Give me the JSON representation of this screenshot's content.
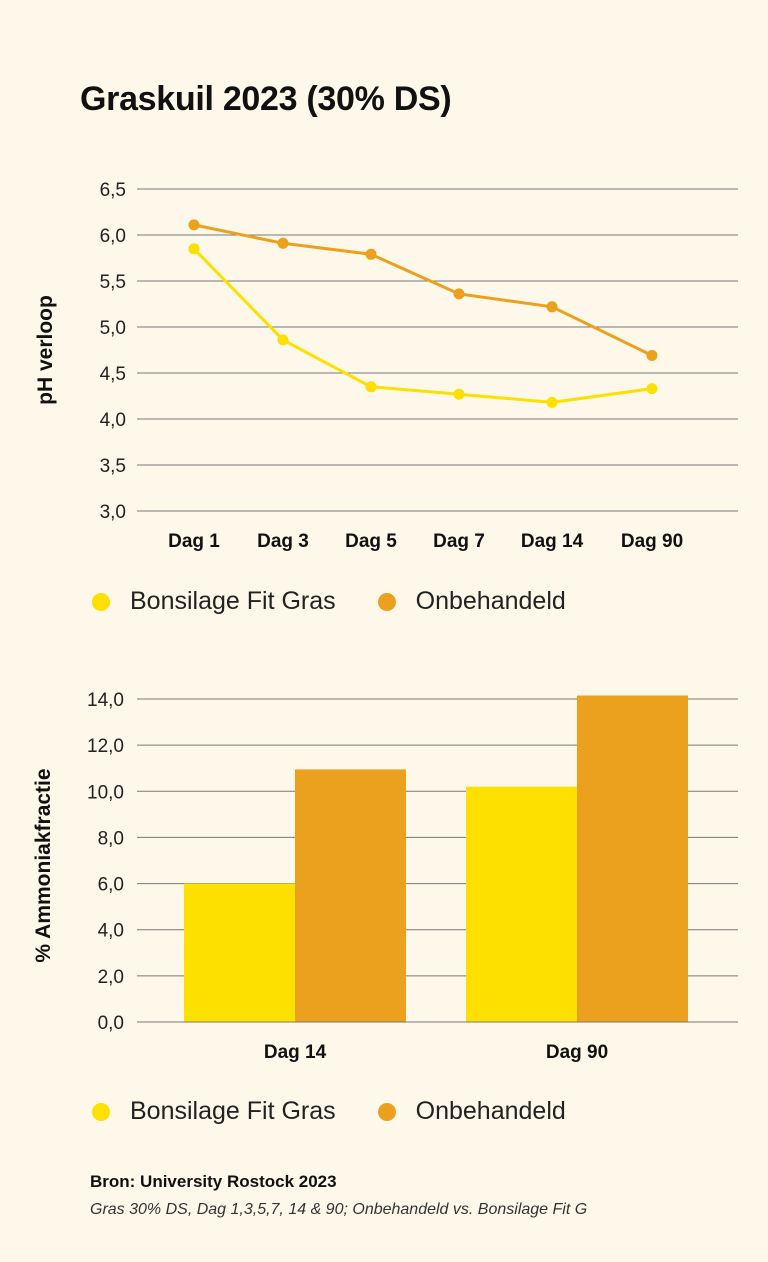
{
  "title": "Graskuil 2023 (30% DS)",
  "colors": {
    "fit": "#fde000",
    "onb": "#eca11e",
    "background": "#fdf8e9"
  },
  "legend": {
    "fit": "Bonsilage Fit Gras",
    "onb": "Onbehandeld"
  },
  "chart_data": [
    {
      "type": "line",
      "ylabel": "pH verloop",
      "categories": [
        "Dag 1",
        "Dag 3",
        "Dag 5",
        "Dag 7",
        "Dag 14",
        "Dag 90"
      ],
      "ylim": [
        3.0,
        6.5
      ],
      "yticks": [
        "3,0",
        "3,5",
        "4,0",
        "4,5",
        "5,0",
        "5,5",
        "6,0",
        "6,5"
      ],
      "series": [
        {
          "name": "Bonsilage Fit Gras",
          "values": [
            5.85,
            4.86,
            4.35,
            4.27,
            4.18,
            4.33
          ]
        },
        {
          "name": "Onbehandeld",
          "values": [
            6.11,
            5.91,
            5.79,
            5.36,
            5.22,
            4.69
          ]
        }
      ]
    },
    {
      "type": "bar",
      "ylabel": "% Ammoniakfractie",
      "categories": [
        "Dag 14",
        "Dag 90"
      ],
      "ylim": [
        0,
        14.0
      ],
      "yticks": [
        "0,0",
        "2,0",
        "4,0",
        "6,0",
        "8,0",
        "10,0",
        "12,0",
        "14,0"
      ],
      "series": [
        {
          "name": "Bonsilage Fit Gras",
          "values": [
            6.0,
            10.2
          ]
        },
        {
          "name": "Onbehandeld",
          "values": [
            10.95,
            14.15
          ]
        }
      ]
    }
  ],
  "source": {
    "line1": "Bron: University Rostock 2023",
    "line2": "Gras 30% DS, Dag 1,3,5,7, 14 & 90; Onbehandeld vs. Bonsilage Fit G"
  }
}
